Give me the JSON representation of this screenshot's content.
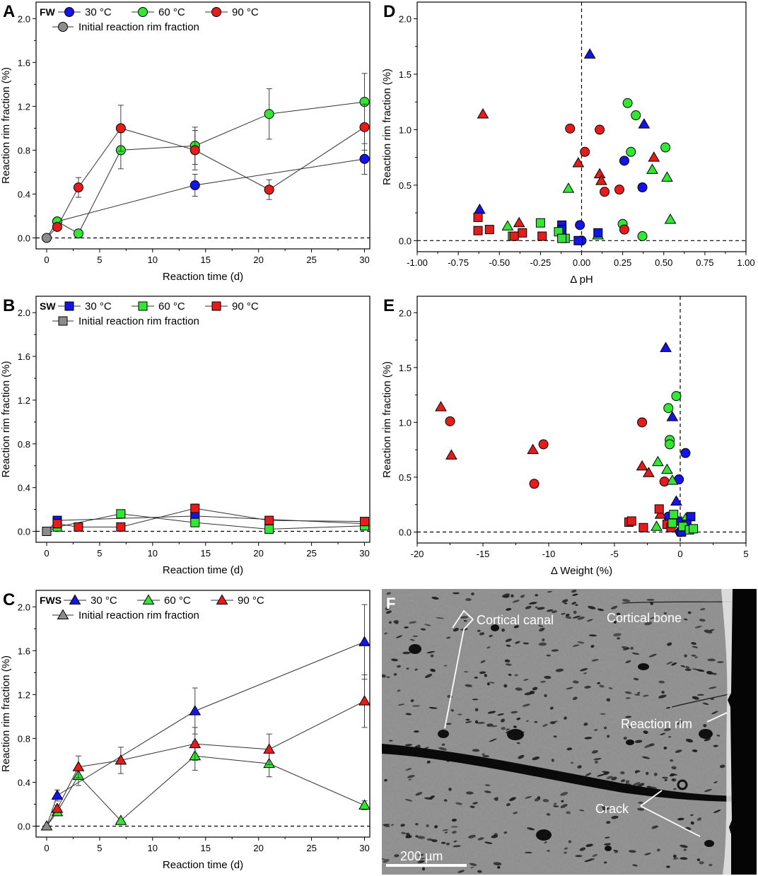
{
  "colors": {
    "blue": "#1414e6",
    "green": "#33e633",
    "red": "#e61c1c",
    "gray": "#8c8c8c",
    "sem_bg": "#8a8a8a",
    "sem_dark": "#101010",
    "sem_rim": "#e8e8e8"
  },
  "chart_data": [
    {
      "panel": "A",
      "type": "line",
      "legend_title": "FW",
      "marker": "circle",
      "xlabel": "Reaction time (d)",
      "ylabel": "Reaction rim fraction (%)",
      "xlim": [
        -1,
        30.5
      ],
      "ylim": [
        -0.1,
        2.15
      ],
      "xticks": [
        0,
        5,
        10,
        15,
        20,
        25,
        30
      ],
      "yticks": [
        0.0,
        0.4,
        0.8,
        1.2,
        1.6,
        2.0
      ],
      "xtick_labels": [
        "0",
        "5",
        "10",
        "15",
        "20",
        "25",
        "30"
      ],
      "ytick_labels": [
        "0.0",
        "0.4",
        "0.8",
        "1.2",
        "1.6",
        "2.0"
      ],
      "initial_label": "Initial reaction rim fraction",
      "initial": {
        "x": 0,
        "y": 0.0
      },
      "series": [
        {
          "name": "30 °C",
          "color": "blue",
          "x": [
            1,
            14,
            30
          ],
          "y": [
            0.15,
            0.48,
            0.72
          ],
          "err": [
            0.02,
            0.1,
            0.14
          ]
        },
        {
          "name": "60 °C",
          "color": "green",
          "x": [
            1,
            3,
            7,
            14,
            21,
            30
          ],
          "y": [
            0.15,
            0.04,
            0.8,
            0.84,
            1.13,
            1.24
          ],
          "err": [
            0.02,
            0.02,
            0.17,
            0.17,
            0.23,
            0.26
          ]
        },
        {
          "name": "90 °C",
          "color": "red",
          "x": [
            1,
            3,
            7,
            14,
            21,
            30
          ],
          "y": [
            0.1,
            0.46,
            1.0,
            0.8,
            0.44,
            1.01
          ],
          "err": [
            0.02,
            0.09,
            0.21,
            0.18,
            0.09,
            0.21
          ]
        }
      ]
    },
    {
      "panel": "B",
      "type": "line",
      "legend_title": "SW",
      "marker": "square",
      "xlabel": "Reaction time (d)",
      "ylabel": "Reaction rim fraction (%)",
      "xlim": [
        -1,
        30.5
      ],
      "ylim": [
        -0.1,
        2.15
      ],
      "xticks": [
        0,
        5,
        10,
        15,
        20,
        25,
        30
      ],
      "yticks": [
        0.0,
        0.4,
        0.8,
        1.2,
        1.6,
        2.0
      ],
      "xtick_labels": [
        "0",
        "5",
        "10",
        "15",
        "20",
        "25",
        "30"
      ],
      "ytick_labels": [
        "0.0",
        "0.4",
        "0.8",
        "1.2",
        "1.6",
        "2.0"
      ],
      "initial_label": "Initial reaction rim fraction",
      "initial": {
        "x": 0,
        "y": 0.0
      },
      "series": [
        {
          "name": "30 °C",
          "color": "blue",
          "x": [
            1,
            14,
            30
          ],
          "y": [
            0.1,
            0.14,
            0.07
          ],
          "err": [
            0.02,
            0.03,
            0.02
          ]
        },
        {
          "name": "60 °C",
          "color": "green",
          "x": [
            1,
            7,
            14,
            21,
            30
          ],
          "y": [
            0.04,
            0.16,
            0.08,
            0.02,
            0.05
          ],
          "err": [
            0.02,
            0.03,
            0.02,
            0.01,
            0.02
          ]
        },
        {
          "name": "90 °C",
          "color": "red",
          "x": [
            1,
            3,
            7,
            14,
            21,
            30
          ],
          "y": [
            0.07,
            0.04,
            0.04,
            0.21,
            0.1,
            0.09
          ],
          "err": [
            0.02,
            0.01,
            0.01,
            0.04,
            0.02,
            0.02
          ]
        }
      ]
    },
    {
      "panel": "C",
      "type": "line",
      "legend_title": "FWS",
      "marker": "triangle",
      "xlabel": "Reaction time (d)",
      "ylabel": "Reaction rim fraction (%)",
      "xlim": [
        -1,
        30.5
      ],
      "ylim": [
        -0.1,
        2.15
      ],
      "xticks": [
        0,
        5,
        10,
        15,
        20,
        25,
        30
      ],
      "yticks": [
        0.0,
        0.4,
        0.8,
        1.2,
        1.6,
        2.0
      ],
      "xtick_labels": [
        "0",
        "5",
        "10",
        "15",
        "20",
        "25",
        "30"
      ],
      "ytick_labels": [
        "0.0",
        "0.4",
        "0.8",
        "1.2",
        "1.6",
        "2.0"
      ],
      "initial_label": "Initial reaction rim fraction",
      "initial": {
        "x": 0,
        "y": 0.0
      },
      "series": [
        {
          "name": "30 °C",
          "color": "blue",
          "x": [
            1,
            14,
            30
          ],
          "y": [
            0.28,
            1.05,
            1.68
          ],
          "err": [
            0.05,
            0.21,
            0.34
          ]
        },
        {
          "name": "60 °C",
          "color": "green",
          "x": [
            1,
            3,
            7,
            14,
            21,
            30
          ],
          "y": [
            0.13,
            0.46,
            0.05,
            0.64,
            0.57,
            0.19
          ],
          "err": [
            0.03,
            0.09,
            0.01,
            0.13,
            0.12,
            0.04
          ]
        },
        {
          "name": "90 °C",
          "color": "red",
          "x": [
            1,
            3,
            7,
            14,
            21,
            30
          ],
          "y": [
            0.16,
            0.54,
            0.6,
            0.75,
            0.7,
            1.14
          ],
          "err": [
            0.03,
            0.1,
            0.12,
            0.15,
            0.14,
            0.24
          ]
        }
      ]
    },
    {
      "panel": "D",
      "type": "scatter",
      "xlabel": "Δ pH",
      "ylabel": "Reaction rim fraction (%)",
      "xlim": [
        -1.0,
        1.0
      ],
      "ylim": [
        -0.1,
        2.15
      ],
      "xticks": [
        -1.0,
        -0.75,
        -0.5,
        -0.25,
        0.0,
        0.25,
        0.5,
        0.75,
        1.0
      ],
      "yticks": [
        0.0,
        0.5,
        1.0,
        1.5,
        2.0
      ],
      "xtick_labels": [
        "-1.00",
        "-0.75",
        "-0.50",
        "-0.25",
        "0.00",
        "0.25",
        "0.50",
        "0.75",
        "1.00"
      ],
      "ytick_labels": [
        "0.0",
        "0.5",
        "1.0",
        "1.5",
        "2.0"
      ],
      "vline_x": 0,
      "points": [
        [
          "circle",
          "blue",
          0.0,
          0.0
        ],
        [
          "circle",
          "blue",
          -0.01,
          0.14
        ],
        [
          "circle",
          "blue",
          0.26,
          0.72
        ],
        [
          "circle",
          "blue",
          0.37,
          0.48
        ],
        [
          "circle",
          "green",
          0.28,
          1.24
        ],
        [
          "circle",
          "green",
          0.33,
          1.13
        ],
        [
          "circle",
          "green",
          0.3,
          0.8
        ],
        [
          "circle",
          "green",
          0.51,
          0.84
        ],
        [
          "circle",
          "green",
          0.25,
          0.15
        ],
        [
          "circle",
          "green",
          0.37,
          0.04
        ],
        [
          "circle",
          "red",
          -0.07,
          1.01
        ],
        [
          "circle",
          "red",
          0.11,
          1.0
        ],
        [
          "circle",
          "red",
          0.02,
          0.8
        ],
        [
          "circle",
          "red",
          0.23,
          0.46
        ],
        [
          "circle",
          "red",
          0.14,
          0.44
        ],
        [
          "circle",
          "red",
          0.26,
          0.1
        ],
        [
          "triangle",
          "blue",
          0.05,
          1.68
        ],
        [
          "triangle",
          "blue",
          0.38,
          1.05
        ],
        [
          "triangle",
          "blue",
          -0.62,
          0.28
        ],
        [
          "triangle",
          "green",
          -0.08,
          0.47
        ],
        [
          "triangle",
          "green",
          0.43,
          0.64
        ],
        [
          "triangle",
          "green",
          0.52,
          0.57
        ],
        [
          "triangle",
          "green",
          0.54,
          0.19
        ],
        [
          "triangle",
          "green",
          -0.45,
          0.13
        ],
        [
          "triangle",
          "green",
          0.1,
          0.05
        ],
        [
          "triangle",
          "red",
          -0.6,
          1.14
        ],
        [
          "triangle",
          "red",
          -0.02,
          0.7
        ],
        [
          "triangle",
          "red",
          0.44,
          0.75
        ],
        [
          "triangle",
          "red",
          0.11,
          0.6
        ],
        [
          "triangle",
          "red",
          0.12,
          0.54
        ],
        [
          "triangle",
          "red",
          -0.38,
          0.16
        ],
        [
          "square",
          "blue",
          -0.12,
          0.14
        ],
        [
          "square",
          "blue",
          -0.12,
          0.1
        ],
        [
          "square",
          "blue",
          0.1,
          0.07
        ],
        [
          "square",
          "blue",
          -0.02,
          0.0
        ],
        [
          "square",
          "green",
          -0.25,
          0.16
        ],
        [
          "square",
          "green",
          -0.14,
          0.08
        ],
        [
          "square",
          "green",
          -0.1,
          0.02
        ],
        [
          "square",
          "green",
          -0.12,
          0.02
        ],
        [
          "square",
          "green",
          -0.42,
          0.04
        ],
        [
          "square",
          "red",
          -0.63,
          0.21
        ],
        [
          "square",
          "red",
          -0.63,
          0.09
        ],
        [
          "square",
          "red",
          -0.56,
          0.1
        ],
        [
          "square",
          "red",
          -0.36,
          0.07
        ],
        [
          "square",
          "red",
          -0.41,
          0.04
        ],
        [
          "square",
          "red",
          -0.24,
          0.04
        ]
      ]
    },
    {
      "panel": "E",
      "type": "scatter",
      "xlabel": "Δ Weight (%)",
      "ylabel": "Reaction rim fraction (%)",
      "xlim": [
        -20,
        5
      ],
      "ylim": [
        -0.1,
        2.15
      ],
      "xticks": [
        -20,
        -15,
        -10,
        -5,
        0,
        5
      ],
      "yticks": [
        0.0,
        0.5,
        1.0,
        1.5,
        2.0
      ],
      "xtick_labels": [
        "-20",
        "-15",
        "-10",
        "-5",
        "0",
        "5"
      ],
      "ytick_labels": [
        "0.0",
        "0.5",
        "1.0",
        "1.5",
        "2.0"
      ],
      "vline_x": 0,
      "points": [
        [
          "circle",
          "red",
          -17.5,
          1.01
        ],
        [
          "circle",
          "red",
          -10.4,
          0.8
        ],
        [
          "circle",
          "red",
          -11.1,
          0.44
        ],
        [
          "circle",
          "red",
          -2.9,
          1.0
        ],
        [
          "circle",
          "red",
          -1.2,
          0.46
        ],
        [
          "circle",
          "green",
          -0.3,
          1.24
        ],
        [
          "circle",
          "green",
          -0.9,
          1.13
        ],
        [
          "circle",
          "green",
          -0.8,
          0.84
        ],
        [
          "circle",
          "green",
          -0.8,
          0.8
        ],
        [
          "circle",
          "blue",
          0.4,
          0.72
        ],
        [
          "circle",
          "blue",
          -0.1,
          0.48
        ],
        [
          "circle",
          "blue",
          -0.9,
          0.14
        ],
        [
          "circle",
          "blue",
          0.0,
          0.0
        ],
        [
          "triangle",
          "red",
          -18.2,
          1.14
        ],
        [
          "triangle",
          "red",
          -17.4,
          0.7
        ],
        [
          "triangle",
          "red",
          -11.2,
          0.75
        ],
        [
          "triangle",
          "red",
          -2.9,
          0.6
        ],
        [
          "triangle",
          "red",
          -2.4,
          0.54
        ],
        [
          "triangle",
          "red",
          -1.5,
          0.16
        ],
        [
          "triangle",
          "blue",
          -1.1,
          1.68
        ],
        [
          "triangle",
          "blue",
          -0.6,
          1.05
        ],
        [
          "triangle",
          "blue",
          -0.3,
          0.28
        ],
        [
          "triangle",
          "green",
          -1.7,
          0.64
        ],
        [
          "triangle",
          "green",
          -1.0,
          0.57
        ],
        [
          "triangle",
          "green",
          -0.6,
          0.47
        ],
        [
          "triangle",
          "green",
          -1.8,
          0.05
        ],
        [
          "triangle",
          "green",
          0.4,
          0.12
        ],
        [
          "square",
          "red",
          -3.9,
          0.09
        ],
        [
          "square",
          "red",
          -3.7,
          0.1
        ],
        [
          "square",
          "red",
          -2.8,
          0.04
        ],
        [
          "square",
          "red",
          -1.6,
          0.21
        ],
        [
          "square",
          "red",
          -1.0,
          0.07
        ],
        [
          "square",
          "red",
          -0.7,
          0.04
        ],
        [
          "square",
          "blue",
          0.8,
          0.14
        ],
        [
          "square",
          "blue",
          0.5,
          0.07
        ],
        [
          "square",
          "blue",
          -0.2,
          0.1
        ],
        [
          "square",
          "blue",
          0.1,
          0.0
        ],
        [
          "square",
          "green",
          -0.5,
          0.16
        ],
        [
          "square",
          "green",
          0.2,
          0.05
        ],
        [
          "square",
          "green",
          0.7,
          0.02
        ],
        [
          "square",
          "green",
          1.0,
          0.03
        ],
        [
          "square",
          "green",
          -0.6,
          0.08
        ]
      ]
    }
  ],
  "image_panel": {
    "panel": "F",
    "labels": {
      "cortical_bone": "Cortical bone",
      "cortical_canal": "Cortical canal",
      "reaction_rim": "Reaction rim",
      "crack": "Crack",
      "scale_bar": "200 µm"
    }
  }
}
